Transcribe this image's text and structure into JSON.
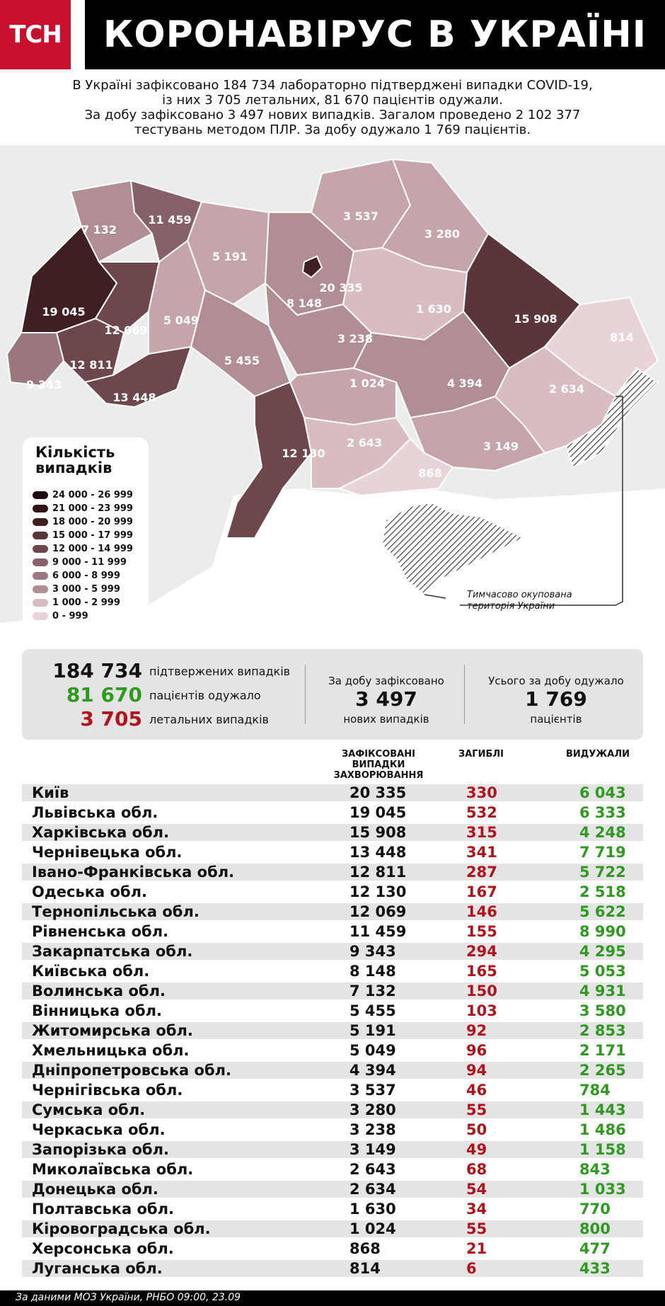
{
  "header": {
    "logo": "ТСН",
    "title": "КОРОНАВІРУС В УКРАЇНІ"
  },
  "summary": [
    "В Україні зафіксовано 184 734 лабораторно підтверджені випадки COVID-19,",
    "із них 3 705 летальних, 81 670 пацієнтів одужали.",
    "За добу зафіксовано 3 497 нових випадків. Загалом проведено 2 102 377",
    "тестувань методом ПЛР. За добу одужало 1 769 пацієнтів."
  ],
  "map": {
    "labels": [
      "7 132",
      "11 459",
      "5 191",
      "3 537",
      "3 280",
      "19 045",
      "12 069",
      "5 049",
      "8 148",
      "20 335",
      "1 630",
      "15 908",
      "814",
      "12 811",
      "5 455",
      "3 238",
      "9 343",
      "13 448",
      "1 024",
      "4 394",
      "2 634",
      "12 130",
      "2 643",
      "3 149",
      "868"
    ],
    "colors": {
      "c0": "#e8d4d6",
      "c1": "#d8bdc0",
      "c2": "#c5a5a9",
      "c3": "#b08e93",
      "c4": "#9a787d",
      "c5": "#866268",
      "c6": "#6e474c",
      "c7": "#5a3639",
      "c8": "#401f22",
      "c9": "#2d1315"
    },
    "occupied_note": [
      "Тимчасово окупована",
      "територія України"
    ]
  },
  "legend": {
    "title": [
      "Кількість",
      "випадків"
    ],
    "items": [
      {
        "label": "24 000 - 26 999",
        "color": "#1e0b0d"
      },
      {
        "label": "21 000 - 23 999",
        "color": "#2d1315"
      },
      {
        "label": "18 000 - 20 999",
        "color": "#401f22"
      },
      {
        "label": "15 000 - 17 999",
        "color": "#5a3639"
      },
      {
        "label": "12 000 - 14 999",
        "color": "#6e474c"
      },
      {
        "label": "9 000 - 11 999",
        "color": "#866268"
      },
      {
        "label": "6 000 - 8 999",
        "color": "#9a787d"
      },
      {
        "label": "3 000 - 5 999",
        "color": "#b08e93"
      },
      {
        "label": "1 000 - 2 999",
        "color": "#d8bdc0"
      },
      {
        "label": "0 - 999",
        "color": "#e8d4d6"
      }
    ]
  },
  "stats": {
    "confirmed": {
      "value": "184 734",
      "label": "підтвержених випадків"
    },
    "recovered": {
      "value": "81 670",
      "label": "пацієнтів одужало"
    },
    "deaths": {
      "value": "3 705",
      "label": "летальних випадків"
    },
    "daily": {
      "head": "За добу зафіксовано",
      "value": "3 497",
      "foot": "нових випадків"
    },
    "daily_recovered": {
      "head": "Усього за добу одужало",
      "value": "1 769",
      "foot": "пацієнтів"
    }
  },
  "table": {
    "headers": {
      "cases": [
        "ЗАФІКСОВАНІ",
        "ВИПАДКИ",
        "ЗАХВОРЮВАННЯ"
      ],
      "deaths": "ЗАГИБЛІ",
      "recovered": "ВИДУЖАЛИ"
    },
    "rows": [
      {
        "region": "Київ",
        "cases": "20 335",
        "deaths": "330",
        "recovered": "6 043"
      },
      {
        "region": "Львівська обл.",
        "cases": "19 045",
        "deaths": "532",
        "recovered": "6 333"
      },
      {
        "region": "Харківська обл.",
        "cases": "15 908",
        "deaths": "315",
        "recovered": "4 248"
      },
      {
        "region": "Чернівецька обл.",
        "cases": "13 448",
        "deaths": "341",
        "recovered": "7 719"
      },
      {
        "region": "Івано-Франківська обл.",
        "cases": "12 811",
        "deaths": "287",
        "recovered": "5 722"
      },
      {
        "region": "Одеська обл.",
        "cases": "12 130",
        "deaths": "167",
        "recovered": "2 518"
      },
      {
        "region": "Тернопільська обл.",
        "cases": "12 069",
        "deaths": "146",
        "recovered": "5 622"
      },
      {
        "region": "Рівненська обл.",
        "cases": "11 459",
        "deaths": "155",
        "recovered": "8 990"
      },
      {
        "region": "Закарпатська обл.",
        "cases": "9 343",
        "deaths": "294",
        "recovered": "4 295"
      },
      {
        "region": "Київська обл.",
        "cases": "8 148",
        "deaths": "165",
        "recovered": "5 053"
      },
      {
        "region": "Волинська обл.",
        "cases": "7 132",
        "deaths": "150",
        "recovered": "4 931"
      },
      {
        "region": "Вінницька обл.",
        "cases": "5 455",
        "deaths": "103",
        "recovered": "3 580"
      },
      {
        "region": "Житомирська обл.",
        "cases": "5 191",
        "deaths": "92",
        "recovered": "2 853"
      },
      {
        "region": "Хмельницька обл.",
        "cases": "5 049",
        "deaths": "96",
        "recovered": "2 171"
      },
      {
        "region": "Дніпропетровська обл.",
        "cases": "4 394",
        "deaths": "94",
        "recovered": "2 265"
      },
      {
        "region": "Чернігівська обл.",
        "cases": "3 537",
        "deaths": "46",
        "recovered": "784"
      },
      {
        "region": "Сумська обл.",
        "cases": "3 280",
        "deaths": "55",
        "recovered": "1 443"
      },
      {
        "region": "Черкаська обл.",
        "cases": "3 238",
        "deaths": "50",
        "recovered": "1 486"
      },
      {
        "region": "Запорізька обл.",
        "cases": "3 149",
        "deaths": "49",
        "recovered": "1 158"
      },
      {
        "region": "Миколаївська обл.",
        "cases": "2 643",
        "deaths": "68",
        "recovered": "843"
      },
      {
        "region": "Донецька обл.",
        "cases": "2 634",
        "deaths": "54",
        "recovered": "1 033"
      },
      {
        "region": "Полтавська обл.",
        "cases": "1 630",
        "deaths": "34",
        "recovered": "770"
      },
      {
        "region": "Кіровоградська обл.",
        "cases": "1 024",
        "deaths": "55",
        "recovered": "800"
      },
      {
        "region": "Херсонська обл.",
        "cases": "868",
        "deaths": "21",
        "recovered": "477"
      },
      {
        "region": "Луганська обл.",
        "cases": "814",
        "deaths": "6",
        "recovered": "433"
      }
    ]
  },
  "footer": "За даними МОЗ України, РНБО  09:00, 23.09"
}
